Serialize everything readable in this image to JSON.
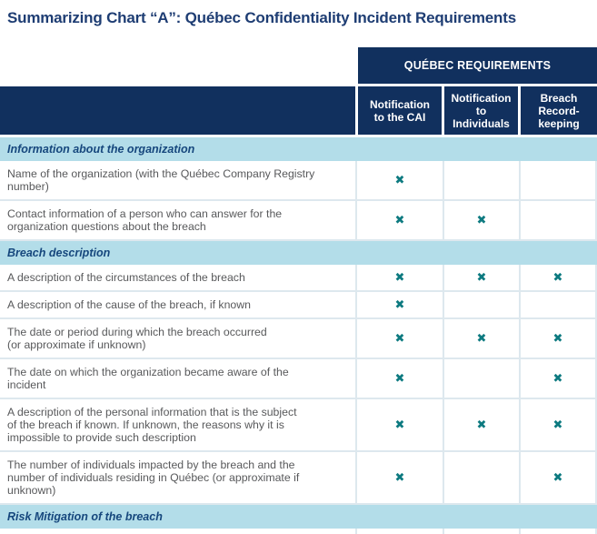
{
  "title": "Summarizing Chart “A”: Québec Confidentiality Incident Requirements",
  "theme": {
    "navy": "#11305e",
    "title-color": "#1e3d73",
    "section-bg": "#b3dde9",
    "section-text": "#16477d",
    "row-text": "#58595b",
    "grid": "#dde8ee",
    "mark": "#0d7a80"
  },
  "table": {
    "banner": "QUÉBEC REQUIREMENTS",
    "columns": [
      "Notification\nto the CAI",
      "Notification\nto\nIndividuals",
      "Breach\nRecord-\nkeeping"
    ],
    "mark_glyph": "✖",
    "rows": [
      {
        "type": "section",
        "label": "Information about the organization"
      },
      {
        "type": "item",
        "label": "Name of the organization (with the Québec Company Registry\nnumber)",
        "marks": [
          true,
          false,
          false
        ]
      },
      {
        "type": "item",
        "label": "Contact information of a person who can answer for the\norganization questions about the breach",
        "marks": [
          true,
          true,
          false
        ]
      },
      {
        "type": "section",
        "label": "Breach description"
      },
      {
        "type": "item",
        "label": "A description of the circumstances of the breach",
        "marks": [
          true,
          true,
          true
        ]
      },
      {
        "type": "item",
        "label": "A description of the cause of the breach, if known",
        "marks": [
          true,
          false,
          false
        ]
      },
      {
        "type": "item",
        "label": "The date or period during which the breach occurred\n(or approximate if unknown)",
        "marks": [
          true,
          true,
          true
        ]
      },
      {
        "type": "item",
        "label": "The date on which the organization became aware of the\nincident",
        "marks": [
          true,
          false,
          true
        ]
      },
      {
        "type": "item",
        "label": "A description of the personal information that is the subject\nof the breach if known. If unknown, the reasons why it is\nimpossible to provide such description",
        "marks": [
          true,
          true,
          true
        ]
      },
      {
        "type": "item",
        "label": "The number of individuals impacted by the breach and the\nnumber of individuals residing in Québec (or approximate if\nunknown)",
        "marks": [
          true,
          false,
          true
        ]
      },
      {
        "type": "section",
        "label": "Risk Mitigation of the breach"
      }
    ]
  }
}
